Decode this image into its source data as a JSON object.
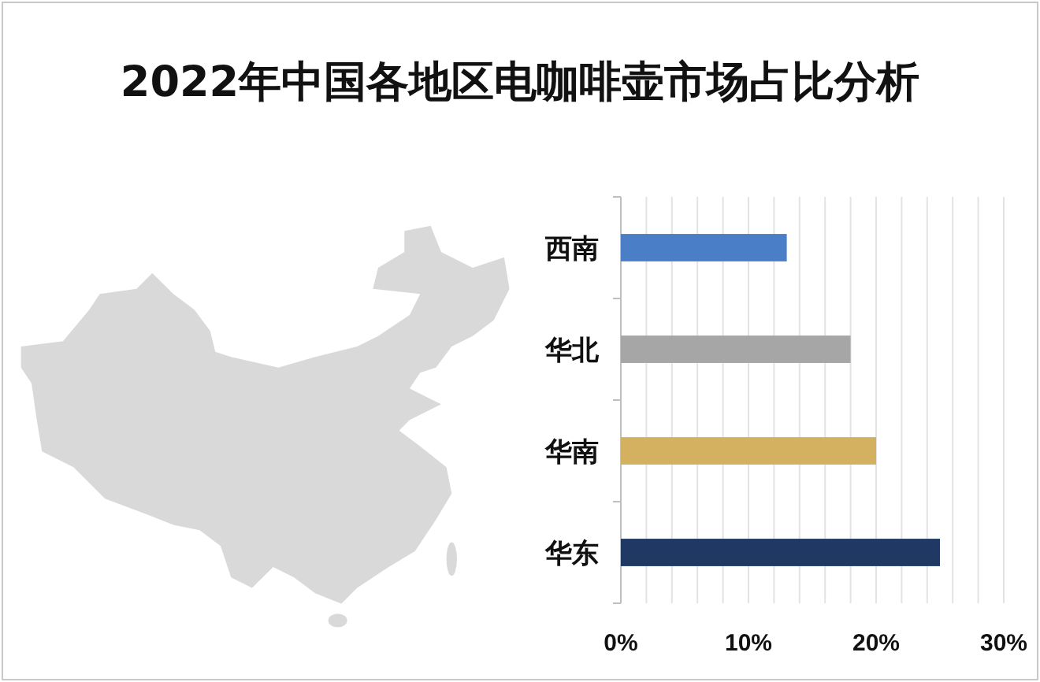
{
  "chart_data": {
    "type": "bar",
    "title": "2022年中国各地区电咖啡壶市场占比分析",
    "orientation": "horizontal",
    "categories": [
      "西南",
      "华北",
      "华南",
      "华东"
    ],
    "values": [
      13,
      18,
      20,
      25
    ],
    "colors": [
      "#4a7fc8",
      "#a6a6a6",
      "#d4b160",
      "#1f3864"
    ],
    "xlim": [
      0,
      30
    ],
    "xticks": [
      {
        "value": 0,
        "label": "0%"
      },
      {
        "value": 2,
        "label": null
      },
      {
        "value": 4,
        "label": null
      },
      {
        "value": 6,
        "label": null
      },
      {
        "value": 8,
        "label": null
      },
      {
        "value": 10,
        "label": "10%"
      },
      {
        "value": 12,
        "label": null
      },
      {
        "value": 14,
        "label": null
      },
      {
        "value": 16,
        "label": null
      },
      {
        "value": 18,
        "label": null
      },
      {
        "value": 20,
        "label": "20%"
      },
      {
        "value": 22,
        "label": null
      },
      {
        "value": 24,
        "label": null
      },
      {
        "value": 26,
        "label": null
      },
      {
        "value": 28,
        "label": null
      },
      {
        "value": 30,
        "label": "30%"
      }
    ],
    "grid": "x"
  }
}
